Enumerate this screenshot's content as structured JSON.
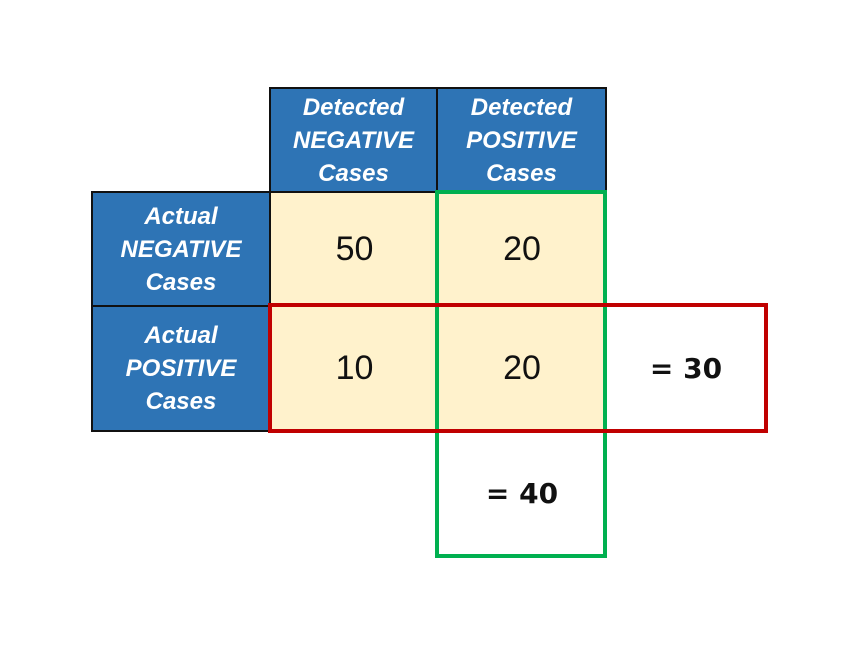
{
  "headers": {
    "col_negative": [
      "Detected",
      "NEGATIVE",
      "Cases"
    ],
    "col_positive": [
      "Detected",
      "POSITIVE",
      "Cases"
    ],
    "row_negative": [
      "Actual",
      "NEGATIVE",
      "Cases"
    ],
    "row_positive": [
      "Actual",
      "POSITIVE",
      "Cases"
    ]
  },
  "matrix": {
    "neg_neg": "50",
    "neg_pos": "20",
    "pos_neg": "10",
    "pos_pos": "20"
  },
  "totals": {
    "row_positive_total": "= 30",
    "col_positive_total": "= 40"
  },
  "colors": {
    "header_fill": "#2e74b5",
    "cell_fill": "#fff2cc",
    "row_highlight": "#c00000",
    "column_highlight": "#00b050"
  }
}
